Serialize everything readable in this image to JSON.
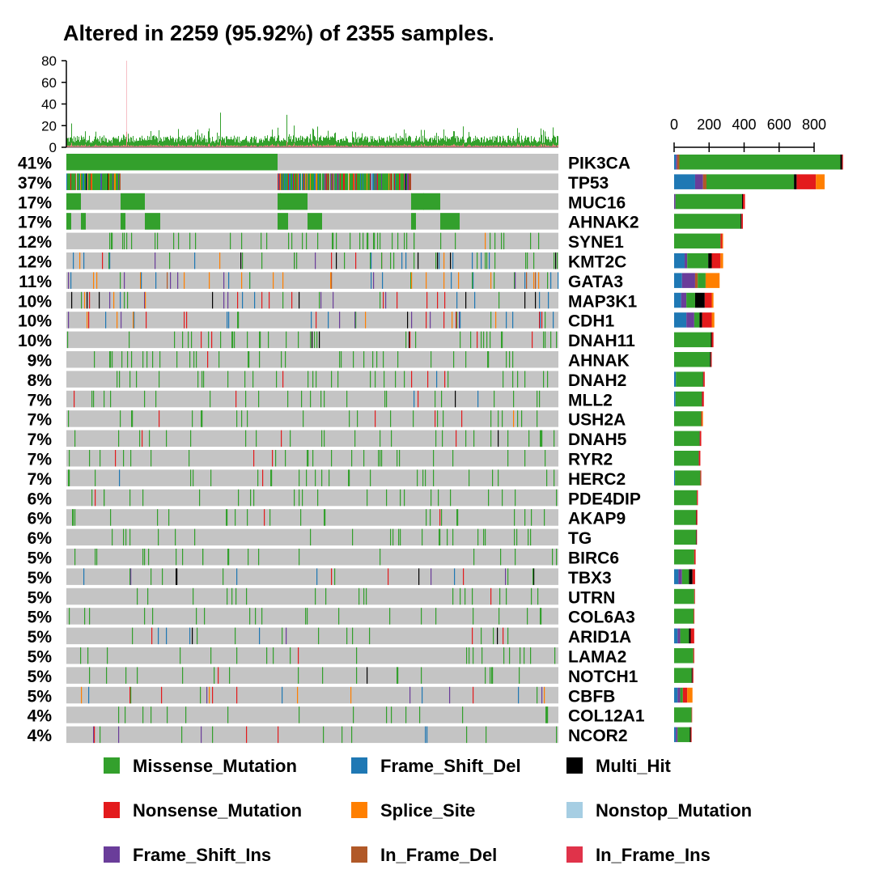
{
  "chart_data": {
    "type": "oncoplot",
    "title": "Altered in 2259 (95.92%) of 2355 samples.",
    "top_axis": {
      "ticks": [
        "0",
        "20",
        "40",
        "60",
        "80"
      ],
      "range": [
        0,
        80
      ]
    },
    "right_axis": {
      "ticks": [
        "0",
        "200",
        "400",
        "600",
        "800"
      ],
      "range": [
        0,
        1000
      ]
    },
    "genes": [
      {
        "name": "PIK3CA",
        "pct": "41%",
        "counts": {
          "Missense_Mutation": 920,
          "Frame_Shift_Del": 10,
          "Frame_Shift_Ins": 8,
          "In_Frame_Del": 12,
          "Nonsense_Mutation": 5,
          "Multi_Hit": 10
        }
      },
      {
        "name": "TP53",
        "pct": "37%",
        "counts": {
          "Frame_Shift_Del": 120,
          "Frame_Shift_Ins": 45,
          "In_Frame_Del": 20,
          "Missense_Mutation": 500,
          "Multi_Hit": 15,
          "Nonsense_Mutation": 110,
          "Splice_Site": 50
        }
      },
      {
        "name": "MUC16",
        "pct": "17%",
        "counts": {
          "Frame_Shift_Ins": 8,
          "Missense_Mutation": 380,
          "Nonsense_Mutation": 12,
          "Multi_Hit": 5
        }
      },
      {
        "name": "AHNAK2",
        "pct": "17%",
        "counts": {
          "Missense_Mutation": 380,
          "Nonsense_Mutation": 8,
          "Multi_Hit": 5
        }
      },
      {
        "name": "SYNE1",
        "pct": "12%",
        "counts": {
          "Missense_Mutation": 265,
          "Nonsense_Mutation": 10,
          "Splice_Site": 5
        }
      },
      {
        "name": "KMT2C",
        "pct": "12%",
        "counts": {
          "Frame_Shift_Del": 60,
          "Frame_Shift_Ins": 15,
          "Missense_Mutation": 120,
          "Multi_Hit": 20,
          "Nonsense_Mutation": 50,
          "Splice_Site": 15
        }
      },
      {
        "name": "GATA3",
        "pct": "11%",
        "counts": {
          "Frame_Shift_Del": 45,
          "Frame_Shift_Ins": 75,
          "In_Frame_Del": 15,
          "Missense_Mutation": 45,
          "Splice_Site": 80
        }
      },
      {
        "name": "MAP3K1",
        "pct": "10%",
        "counts": {
          "Frame_Shift_Del": 40,
          "Frame_Shift_Ins": 30,
          "Missense_Mutation": 50,
          "Multi_Hit": 55,
          "Nonsense_Mutation": 40,
          "Splice_Site": 10
        }
      },
      {
        "name": "CDH1",
        "pct": "10%",
        "counts": {
          "Frame_Shift_Del": 70,
          "Frame_Shift_Ins": 45,
          "Missense_Mutation": 30,
          "Multi_Hit": 15,
          "Nonsense_Mutation": 55,
          "Splice_Site": 15
        }
      },
      {
        "name": "DNAH11",
        "pct": "10%",
        "counts": {
          "Missense_Mutation": 210,
          "Nonsense_Mutation": 10,
          "Multi_Hit": 5
        }
      },
      {
        "name": "AHNAK",
        "pct": "9%",
        "counts": {
          "Missense_Mutation": 205,
          "Nonsense_Mutation": 5,
          "Multi_Hit": 5
        }
      },
      {
        "name": "DNAH2",
        "pct": "8%",
        "counts": {
          "Frame_Shift_Del": 10,
          "Missense_Mutation": 155,
          "Nonsense_Mutation": 8,
          "Multi_Hit": 2
        }
      },
      {
        "name": "MLL2",
        "pct": "7%",
        "counts": {
          "Frame_Shift_Del": 8,
          "Missense_Mutation": 150,
          "Nonsense_Mutation": 10,
          "Multi_Hit": 2
        }
      },
      {
        "name": "USH2A",
        "pct": "7%",
        "counts": {
          "Missense_Mutation": 155,
          "Nonsense_Mutation": 5,
          "Splice_Site": 5
        }
      },
      {
        "name": "DNAH5",
        "pct": "7%",
        "counts": {
          "Missense_Mutation": 145,
          "Nonsense_Mutation": 8,
          "Multi_Hit": 2
        }
      },
      {
        "name": "RYR2",
        "pct": "7%",
        "counts": {
          "Missense_Mutation": 140,
          "Nonsense_Mutation": 8,
          "Multi_Hit": 2
        }
      },
      {
        "name": "HERC2",
        "pct": "7%",
        "counts": {
          "Missense_Mutation": 145,
          "Nonsense_Mutation": 5,
          "Frame_Shift_Del": 5
        }
      },
      {
        "name": "PDE4DIP",
        "pct": "6%",
        "counts": {
          "Missense_Mutation": 130,
          "Nonsense_Mutation": 6
        }
      },
      {
        "name": "AKAP9",
        "pct": "6%",
        "counts": {
          "Missense_Mutation": 125,
          "Nonsense_Mutation": 6,
          "Multi_Hit": 2
        }
      },
      {
        "name": "TG",
        "pct": "6%",
        "counts": {
          "Missense_Mutation": 125,
          "Multi_Hit": 3,
          "Nonsense_Mutation": 3
        }
      },
      {
        "name": "BIRC6",
        "pct": "5%",
        "counts": {
          "Missense_Mutation": 115,
          "Nonsense_Mutation": 8
        }
      },
      {
        "name": "TBX3",
        "pct": "5%",
        "counts": {
          "Frame_Shift_Del": 25,
          "Frame_Shift_Ins": 20,
          "Missense_Mutation": 40,
          "Multi_Hit": 20,
          "Nonsense_Mutation": 15
        }
      },
      {
        "name": "UTRN",
        "pct": "5%",
        "counts": {
          "Missense_Mutation": 115,
          "Nonsense_Mutation": 4
        }
      },
      {
        "name": "COL6A3",
        "pct": "5%",
        "counts": {
          "Missense_Mutation": 112,
          "Nonsense_Mutation": 4
        }
      },
      {
        "name": "ARID1A",
        "pct": "5%",
        "counts": {
          "Frame_Shift_Del": 20,
          "Frame_Shift_Ins": 15,
          "Missense_Mutation": 50,
          "Multi_Hit": 10,
          "Nonsense_Mutation": 20
        }
      },
      {
        "name": "LAMA2",
        "pct": "5%",
        "counts": {
          "Missense_Mutation": 110,
          "Nonsense_Mutation": 5
        }
      },
      {
        "name": "NOTCH1",
        "pct": "5%",
        "counts": {
          "Missense_Mutation": 100,
          "Nonsense_Mutation": 5,
          "Multi_Hit": 5
        }
      },
      {
        "name": "CBFB",
        "pct": "5%",
        "counts": {
          "Frame_Shift_Del": 20,
          "Frame_Shift_Ins": 15,
          "Missense_Mutation": 15,
          "Nonsense_Mutation": 25,
          "Splice_Site": 30
        }
      },
      {
        "name": "COL12A1",
        "pct": "4%",
        "counts": {
          "Missense_Mutation": 100,
          "Nonsense_Mutation": 3
        }
      },
      {
        "name": "NCOR2",
        "pct": "4%",
        "counts": {
          "Frame_Shift_Del": 10,
          "Frame_Shift_Ins": 10,
          "Missense_Mutation": 70,
          "Multi_Hit": 5,
          "Nonsense_Mutation": 5
        }
      }
    ],
    "stack_order": [
      "Frame_Shift_Del",
      "Frame_Shift_Ins",
      "In_Frame_Del",
      "Missense_Mutation",
      "Multi_Hit",
      "Nonsense_Mutation",
      "Splice_Site",
      "Nonstop_Mutation",
      "In_Frame_Ins"
    ],
    "legend": [
      {
        "name": "Missense_Mutation",
        "color": "#33A02C"
      },
      {
        "name": "Frame_Shift_Del",
        "color": "#1F78B4"
      },
      {
        "name": "Multi_Hit",
        "color": "#000000"
      },
      {
        "name": "Nonsense_Mutation",
        "color": "#E31A1C"
      },
      {
        "name": "Splice_Site",
        "color": "#FF7F00"
      },
      {
        "name": "Nonstop_Mutation",
        "color": "#A6CEE3"
      },
      {
        "name": "Frame_Shift_Ins",
        "color": "#6A3D9A"
      },
      {
        "name": "In_Frame_Del",
        "color": "#B15928"
      },
      {
        "name": "In_Frame_Ins",
        "color": "#E0334A"
      }
    ],
    "background_color": "#C4C4C4"
  }
}
